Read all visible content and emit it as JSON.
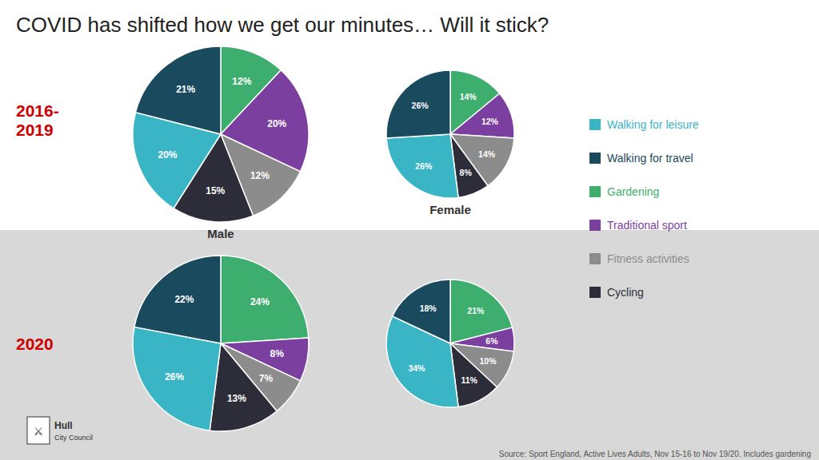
{
  "title": "COVID has shifted how we get our minutes… Will it stick?",
  "categories": [
    "Walking for leisure",
    "Walking for travel",
    "Gardening",
    "Traditional sport",
    "Fitness activities",
    "Cycling"
  ],
  "colors": [
    "#3ab5c6",
    "#1a4a5e",
    "#3dae6e",
    "#7b3fa0",
    "#8c8c8c",
    "#2d2d3a"
  ],
  "legend": "right",
  "annotations": [
    "2016-\n2019",
    "2020",
    "Source: Sport England, Active Lives Adults, Nov 15-16 to Nov 19/20. Includes gardening",
    "⚔",
    "Hull",
    "City Council"
  ],
  "chart_data": [
    {
      "type": "pie",
      "title": "Male",
      "categories": [
        "Gardening",
        "Traditional sport",
        "Fitness activities",
        "Cycling",
        "Walking for leisure",
        "Walking for travel"
      ],
      "values": [
        12,
        20,
        12,
        15,
        20,
        21
      ],
      "value_labels": [
        "12%",
        "20%",
        "12%",
        "15%",
        "20%",
        "21%"
      ],
      "colors": [
        "#3dae6e",
        "#7b3fa0",
        "#8c8c8c",
        "#2d2d3a",
        "#3ab5c6",
        "#1a4a5e"
      ],
      "data_labels": true
    },
    {
      "type": "pie",
      "title": "Female",
      "categories": [
        "Gardening",
        "Traditional sport",
        "Fitness activities",
        "Cycling",
        "Walking for leisure",
        "Walking for travel"
      ],
      "values": [
        14,
        12,
        14,
        8,
        26,
        26
      ],
      "value_labels": [
        "14%",
        "12%",
        "14%",
        "8%",
        "26%",
        "26%"
      ],
      "colors": [
        "#3dae6e",
        "#7b3fa0",
        "#8c8c8c",
        "#2d2d3a",
        "#3ab5c6",
        "#1a4a5e"
      ],
      "data_labels": true
    },
    {
      "type": "pie",
      "categories": [
        "Gardening",
        "Traditional sport",
        "Fitness activities",
        "Cycling",
        "Walking for leisure",
        "Walking for travel"
      ],
      "values": [
        24,
        8,
        7,
        13,
        26,
        22
      ],
      "value_labels": [
        "24%",
        "8%",
        "7%",
        "13%",
        "26%",
        "22%"
      ],
      "colors": [
        "#3dae6e",
        "#7b3fa0",
        "#8c8c8c",
        "#2d2d3a",
        "#3ab5c6",
        "#1a4a5e"
      ],
      "data_labels": true
    },
    {
      "type": "pie",
      "categories": [
        "Gardening",
        "Traditional sport",
        "Fitness activities",
        "Cycling",
        "Walking for leisure",
        "Walking for travel"
      ],
      "values": [
        21,
        6,
        10,
        11,
        34,
        18
      ],
      "value_labels": [
        "21%",
        "6%",
        "10%",
        "11%",
        "34%",
        "18%"
      ],
      "colors": [
        "#3dae6e",
        "#7b3fa0",
        "#8c8c8c",
        "#2d2d3a",
        "#3ab5c6",
        "#1a4a5e"
      ],
      "data_labels": true
    }
  ]
}
